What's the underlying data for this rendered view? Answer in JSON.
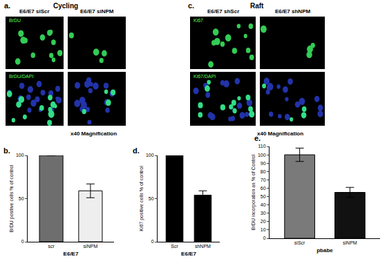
{
  "panels": [
    {
      "label": "a.",
      "title": "Cycling",
      "columns": [
        "E6/E7 siScr",
        "E6/E7 siNPM"
      ],
      "rows": [
        "BrDU",
        "BrDU/DAPI"
      ],
      "magnification": "x40 Magnification"
    },
    {
      "label": "c.",
      "title": "Raft",
      "columns": [
        "E6/E7 shScr",
        "E6/E7 shNPM"
      ],
      "rows": [
        "Ki67",
        "Ki67/DAPI"
      ],
      "magnification": "x40 Magnification"
    }
  ],
  "chart_data": [
    {
      "label": "b.",
      "type": "bar",
      "categories": [
        "scr",
        "siNPM"
      ],
      "values": [
        100,
        59
      ],
      "errors": [
        null,
        8
      ],
      "colors": [
        "#6e6e6e",
        "#eeeeee"
      ],
      "y_label": "BrDU positive cells % of control",
      "x_label": "E6/E7",
      "ylim": [
        0,
        100
      ],
      "yticks": [
        0,
        50,
        100
      ],
      "grid": false
    },
    {
      "label": "d.",
      "type": "bar",
      "categories": [
        "Scr",
        "shNPM"
      ],
      "values": [
        100,
        54
      ],
      "errors": [
        null,
        5
      ],
      "colors": [
        "#000000",
        "#000000"
      ],
      "y_label": "Ki67 positive cells % of control",
      "x_label": "E6/E7",
      "ylim": [
        0,
        100
      ],
      "yticks": [
        0,
        50,
        100
      ],
      "grid": false
    },
    {
      "label": "e.",
      "type": "bar",
      "categories": [
        "siScr",
        "siNPM"
      ],
      "values": [
        100,
        55
      ],
      "errors": [
        8,
        6
      ],
      "colors": [
        "#7a7a7a",
        "#111111"
      ],
      "y_label": "BrDU incorporation as % of Control",
      "x_label": "pbabe",
      "ylim": [
        0,
        110
      ],
      "yticks": [
        0,
        10,
        20,
        30,
        40,
        50,
        60,
        70,
        80,
        90,
        100,
        110
      ],
      "grid": false
    }
  ]
}
